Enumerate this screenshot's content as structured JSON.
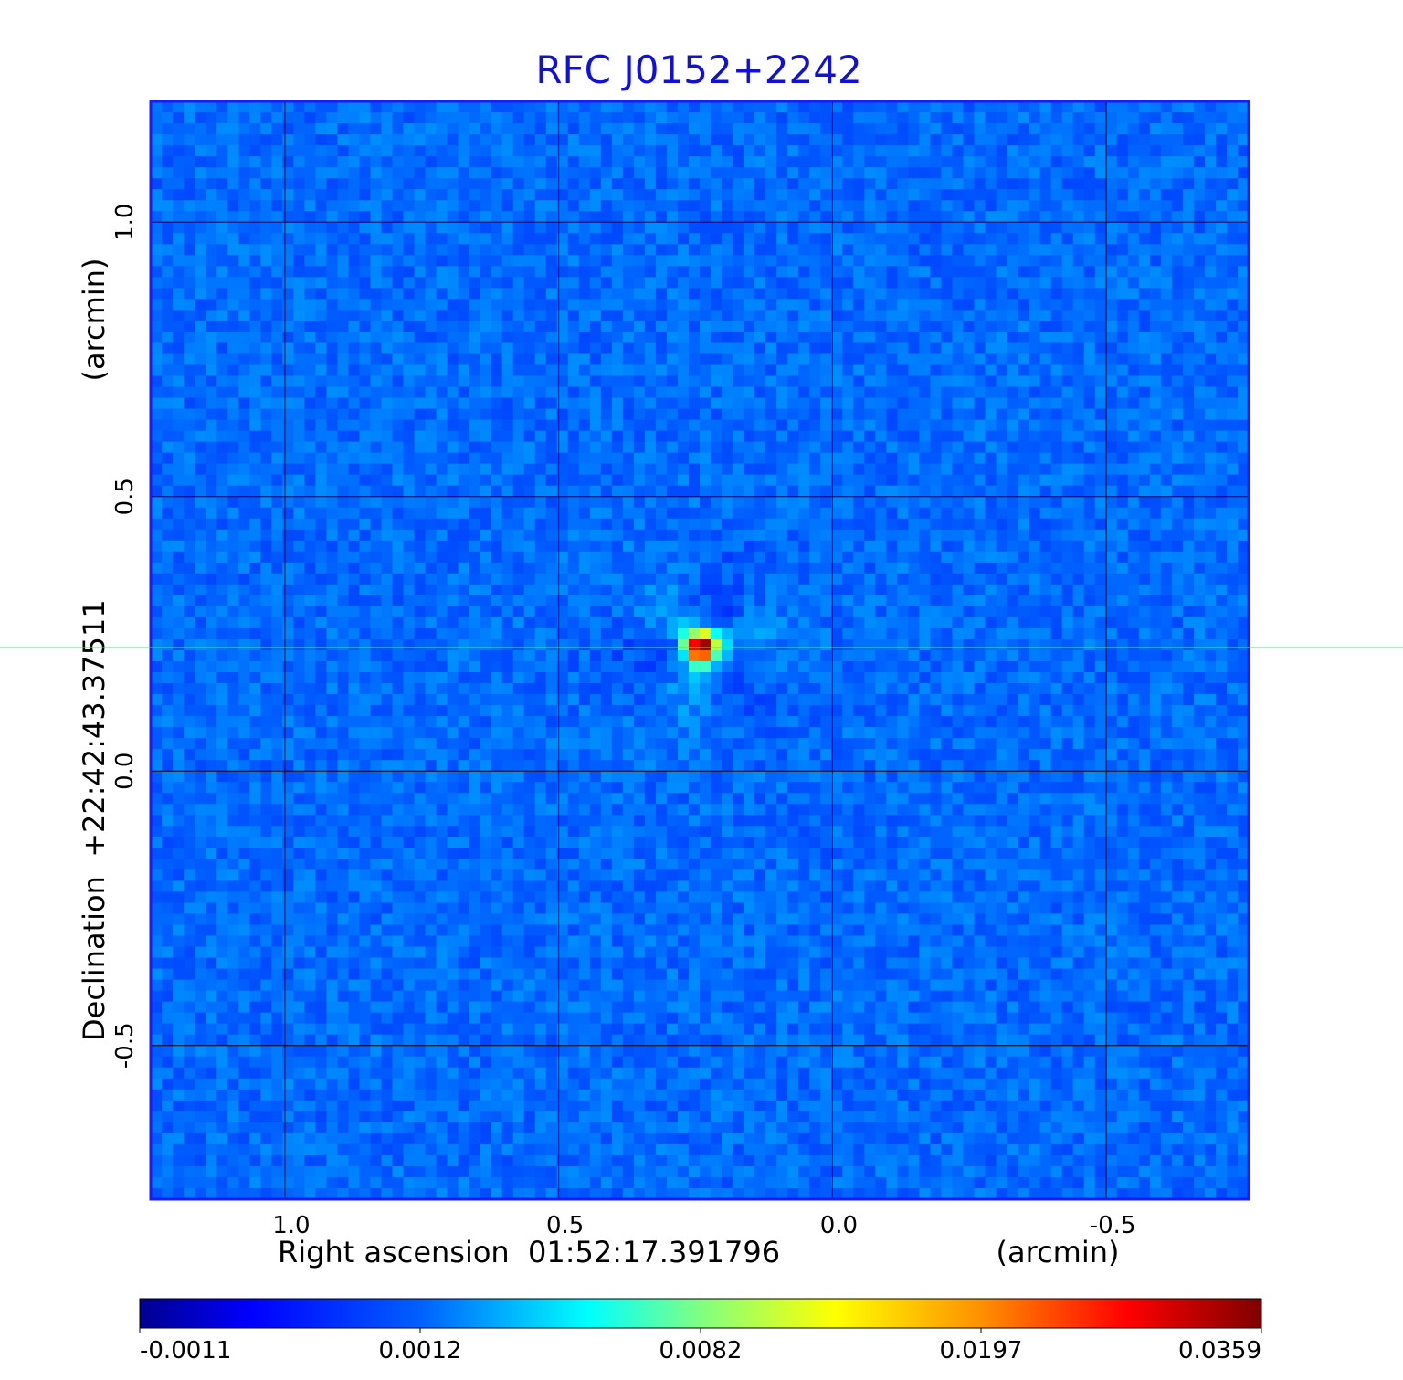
{
  "chart_data": {
    "type": "heatmap",
    "title": "RFC J0152+2242",
    "xlabel": "Right ascension  01:52:17.391796",
    "xunit": "(arcmin)",
    "ylabel": "Declination  +22:42:43.37511",
    "yunit": "(arcmin)",
    "x_ticks": [
      1.0,
      0.5,
      0.0,
      -0.5
    ],
    "x_tick_labels": [
      "1.0",
      "0.5",
      "0.0",
      "-0.5"
    ],
    "y_ticks": [
      1.0,
      0.5,
      0.0,
      -0.5
    ],
    "y_tick_labels": [
      "1.0",
      "0.5",
      "0.0",
      "-0.5"
    ],
    "xlim": [
      1.245,
      -0.76
    ],
    "ylim": [
      -0.78,
      1.22
    ],
    "grid": true,
    "crosshair": {
      "x": 0.24,
      "y": 0.225
    },
    "source_peak": {
      "x": 0.24,
      "y": 0.225,
      "value": 0.0359
    },
    "background_level": 0.0002,
    "colorbar": {
      "colormap": "jet",
      "tick_labels": [
        "-0.0011",
        "0.0012",
        "0.0082",
        "0.0197",
        "0.0359"
      ]
    },
    "colors": {
      "title": "#1010d8",
      "frame": "#1a1aff",
      "grid": "#000000",
      "crosshair": "#33ff33"
    }
  }
}
